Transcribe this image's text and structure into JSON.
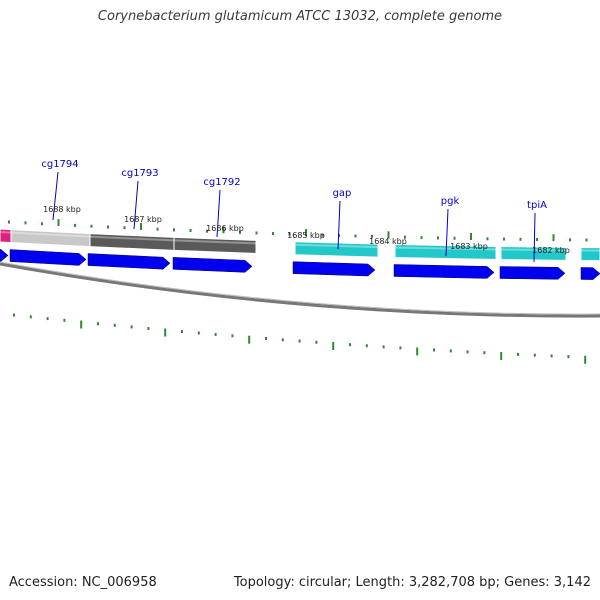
{
  "title": "Corynebacterium glutamicum ATCC 13032, complete genome",
  "accession": "Accession: NC_006958",
  "summary": "Topology: circular; Length: 3,282,708 bp; Genes: 3,142",
  "colors": {
    "label_blue": "#0000cc",
    "cds_blue": "#0000ee",
    "tick_green": "#2e8b2e",
    "backbone": "#888888",
    "gene_magenta": "#e0207a",
    "gene_lightgray": "#c8c8c8",
    "gene_darkgray": "#5a5a5a",
    "gene_cyan": "#22c8c8"
  },
  "gene_labels": [
    "cg1794",
    "cg1793",
    "cg1792",
    "gap",
    "pgk",
    "tpiA"
  ],
  "kbp_labels": [
    "1688 kbp",
    "1687 kbp",
    "1686 kbp",
    "1685 kbp",
    "1684 kbp",
    "1683 kbp",
    "1682 kbp"
  ]
}
